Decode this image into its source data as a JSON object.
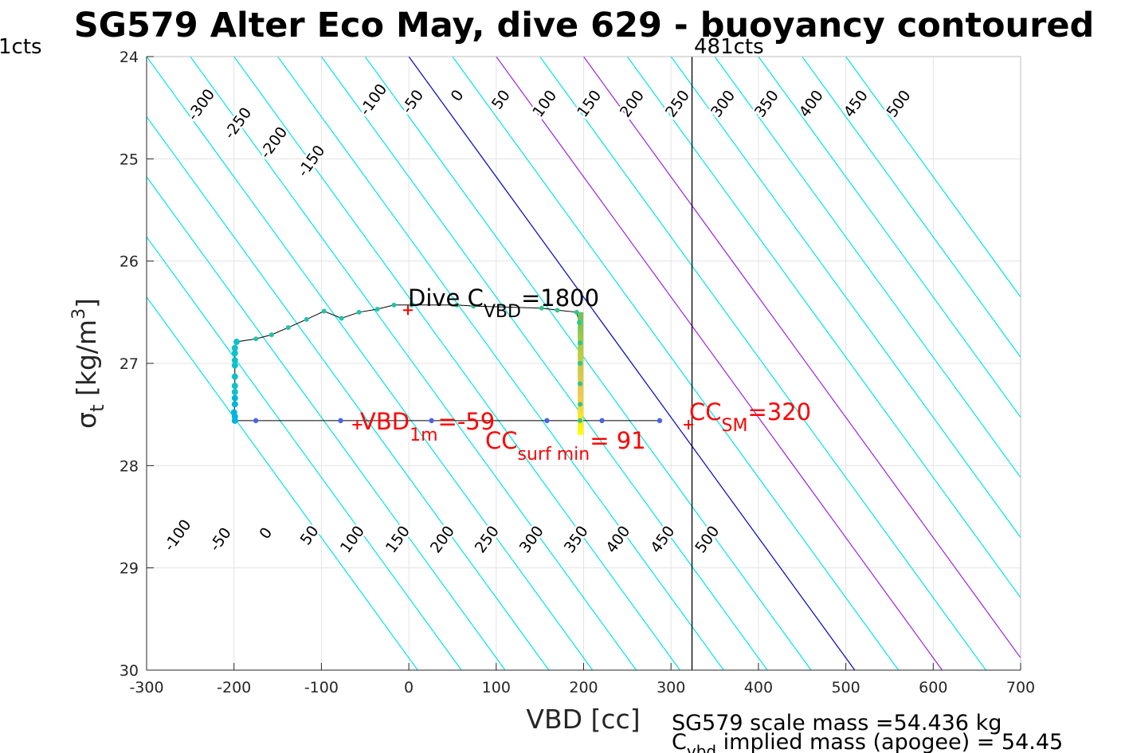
{
  "chart_data": {
    "type": "scatter",
    "title": "SG579 Alter Eco May, dive 629 - buoyancy contoured",
    "xlabel": "VBD [cc]",
    "ylabel_main": "σ",
    "ylabel_sub": "t",
    "ylabel_rest": " [kg/m",
    "ylabel_sup": "3",
    "ylabel_close": "]",
    "xlim": [
      -300,
      700
    ],
    "ylim": [
      24,
      30
    ],
    "y_reversed": true,
    "grid": true,
    "xticks": [
      "-300",
      "-200",
      "-100",
      "0",
      "100",
      "200",
      "300",
      "400",
      "500",
      "600",
      "700"
    ],
    "yticks": [
      "24",
      "25",
      "26",
      "27",
      "28",
      "29",
      "30"
    ],
    "corner_left_label": "1cts",
    "corner_right_label": "481cts",
    "vline_x": 324,
    "contour_slope": 0.01176,
    "contours": [
      {
        "value": -500,
        "color": "#00e5e5"
      },
      {
        "value": -450,
        "color": "#00e5e5"
      },
      {
        "value": -400,
        "color": "#00e5e5"
      },
      {
        "value": -350,
        "color": "#00e5e5"
      },
      {
        "value": -300,
        "color": "#00e5e5"
      },
      {
        "value": -250,
        "color": "#00e5e5"
      },
      {
        "value": -200,
        "color": "#00e5e5"
      },
      {
        "value": -150,
        "color": "#00e5e5"
      },
      {
        "value": -100,
        "color": "#00e5e5"
      },
      {
        "value": -50,
        "color": "#00e5e5"
      },
      {
        "value": 0,
        "color": "#0000c8"
      },
      {
        "value": 50,
        "color": "#00e5e5"
      },
      {
        "value": 100,
        "color": "#a020e0"
      },
      {
        "value": 150,
        "color": "#00e5e5"
      },
      {
        "value": 200,
        "color": "#a020e0"
      },
      {
        "value": 250,
        "color": "#00e5e5"
      },
      {
        "value": 300,
        "color": "#00e5e5"
      },
      {
        "value": 350,
        "color": "#00e5e5"
      },
      {
        "value": 400,
        "color": "#00e5e5"
      },
      {
        "value": 450,
        "color": "#00e5e5"
      },
      {
        "value": 500,
        "color": "#00e5e5"
      }
    ],
    "top_contour_labels": [
      {
        "text": "-300",
        "x": -233,
        "y": 24.5
      },
      {
        "text": "-250",
        "x": -191,
        "y": 24.68
      },
      {
        "text": "-200",
        "x": -150,
        "y": 24.87
      },
      {
        "text": "-150",
        "x": -107,
        "y": 25.05
      },
      {
        "text": "-100",
        "x": -36,
        "y": 24.45
      },
      {
        "text": "-50",
        "x": 9,
        "y": 24.47
      },
      {
        "text": "0",
        "x": 60,
        "y": 24.41
      },
      {
        "text": "50",
        "x": 110,
        "y": 24.45
      },
      {
        "text": "100",
        "x": 160,
        "y": 24.49
      },
      {
        "text": "150",
        "x": 211,
        "y": 24.49
      },
      {
        "text": "200",
        "x": 260,
        "y": 24.49
      },
      {
        "text": "250",
        "x": 312,
        "y": 24.49
      },
      {
        "text": "300",
        "x": 364,
        "y": 24.49
      },
      {
        "text": "350",
        "x": 414,
        "y": 24.49
      },
      {
        "text": "400",
        "x": 465,
        "y": 24.49
      },
      {
        "text": "450",
        "x": 516,
        "y": 24.49
      },
      {
        "text": "500",
        "x": 565,
        "y": 24.49
      }
    ],
    "bottom_contour_labels": [
      {
        "text": "-100",
        "x": -260,
        "y": 28.71
      },
      {
        "text": "-50",
        "x": -211,
        "y": 28.75
      },
      {
        "text": "0",
        "x": -159,
        "y": 28.69
      },
      {
        "text": "50",
        "x": -109,
        "y": 28.71
      },
      {
        "text": "100",
        "x": -60,
        "y": 28.75
      },
      {
        "text": "150",
        "x": -8,
        "y": 28.75
      },
      {
        "text": "200",
        "x": 43,
        "y": 28.75
      },
      {
        "text": "250",
        "x": 94,
        "y": 28.75
      },
      {
        "text": "300",
        "x": 145,
        "y": 28.75
      },
      {
        "text": "350",
        "x": 196,
        "y": 28.75
      },
      {
        "text": "400",
        "x": 244,
        "y": 28.75
      },
      {
        "text": "450",
        "x": 295,
        "y": 28.75
      },
      {
        "text": "500",
        "x": 346,
        "y": 28.75
      }
    ],
    "upcast": [
      [
        -199,
        27.56
      ],
      [
        -175,
        27.56
      ],
      [
        -78,
        27.56
      ],
      [
        26,
        27.56
      ],
      [
        158,
        27.56
      ],
      [
        221,
        27.56
      ],
      [
        287,
        27.56
      ]
    ],
    "profile": [
      [
        -199,
        27.56
      ],
      [
        -199,
        27.52
      ],
      [
        -200,
        27.48
      ],
      [
        -199,
        27.4
      ],
      [
        -199,
        27.34
      ],
      [
        -199,
        27.28
      ],
      [
        -199,
        27.22
      ],
      [
        -199,
        27.13
      ],
      [
        -199,
        27.02
      ],
      [
        -199,
        26.97
      ],
      [
        -199,
        26.9
      ],
      [
        -199,
        26.85
      ],
      [
        -197,
        26.79
      ],
      [
        -175,
        26.76
      ],
      [
        -157,
        26.72
      ],
      [
        -138,
        26.65
      ],
      [
        -117,
        26.57
      ],
      [
        -97,
        26.49
      ],
      [
        -77,
        26.56
      ],
      [
        -57,
        26.5
      ],
      [
        -36,
        26.47
      ],
      [
        -17,
        26.43
      ],
      [
        3,
        26.43
      ],
      [
        55,
        26.43
      ],
      [
        74,
        26.44
      ],
      [
        152,
        26.46
      ],
      [
        170,
        26.48
      ],
      [
        192,
        26.5
      ],
      [
        195,
        26.6
      ],
      [
        196,
        26.8
      ],
      [
        196,
        27
      ],
      [
        196,
        27.2
      ],
      [
        196,
        27.4
      ],
      [
        196,
        27.56
      ]
    ],
    "profile_colors": [
      "#00b4dc",
      "#10c0c8",
      "#22c3a8",
      "#2fc68c"
    ],
    "descent_gradient": [
      "#66c35a",
      "#b8cc40",
      "#f0c850",
      "#ffff00"
    ],
    "marker_color": "#ff0000",
    "annotations": {
      "dive_cvbd_main": "Dive C",
      "dive_cvbd_sub": "VBD",
      "dive_cvbd_rest": "=1800",
      "vbd1m_main": "VBD",
      "vbd1m_sub": "1m",
      "vbd1m_rest": "=-59",
      "ccsurf_main": "CC",
      "ccsurf_sub": "surf min",
      "ccsurf_rest": "= 91",
      "ccsm_main": "CC",
      "ccsm_sub": "SM",
      "ccsm_rest": "=320"
    },
    "markers": [
      {
        "name": "dive-cvbd",
        "x": -1,
        "y": 26.48
      },
      {
        "name": "vbd-1m",
        "x": -59,
        "y": 27.6
      },
      {
        "name": "cc-sm",
        "x": 320,
        "y": 27.6
      }
    ],
    "footer_line1": "SG579 scale mass =54.436 kg",
    "footer_line2_main": "C",
    "footer_line2_sub": "vbd",
    "footer_line2_rest": " implied mass (apogee) = 54.45"
  }
}
